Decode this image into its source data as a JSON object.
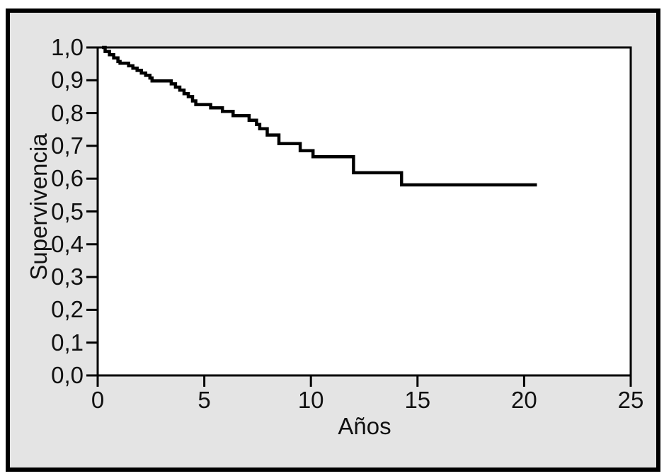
{
  "colors": {
    "panel_background": "#e4e4e4",
    "plot_background": "#ffffff",
    "frame": "#000000",
    "line": "#000000",
    "text": "#111111"
  },
  "chart_data": {
    "type": "line",
    "subtype": "kaplan-meier-step-survival",
    "title": "",
    "xlabel": "Años",
    "ylabel": "Supervivencia",
    "xlim": [
      0,
      25
    ],
    "ylim": [
      0.0,
      1.0
    ],
    "grid": false,
    "legend": false,
    "x_ticks": [
      {
        "value": 0,
        "label": "0"
      },
      {
        "value": 5,
        "label": "5"
      },
      {
        "value": 10,
        "label": "10"
      },
      {
        "value": 15,
        "label": "15"
      },
      {
        "value": 20,
        "label": "20"
      },
      {
        "value": 25,
        "label": "25"
      }
    ],
    "y_ticks": [
      {
        "value": 1.0,
        "label": "1,0"
      },
      {
        "value": 0.9,
        "label": "0,9"
      },
      {
        "value": 0.8,
        "label": "0,8"
      },
      {
        "value": 0.7,
        "label": "0,7"
      },
      {
        "value": 0.6,
        "label": "0,6"
      },
      {
        "value": 0.5,
        "label": "0,5"
      },
      {
        "value": 0.4,
        "label": "0,4"
      },
      {
        "value": 0.3,
        "label": "0,3"
      },
      {
        "value": 0.2,
        "label": "0,2"
      },
      {
        "value": 0.1,
        "label": "0,1"
      },
      {
        "value": 0.0,
        "label": "0,0"
      }
    ],
    "series": [
      {
        "steps": [
          [
            0.2,
            1.0
          ],
          [
            0.35,
            0.988
          ],
          [
            0.55,
            0.978
          ],
          [
            0.75,
            0.968
          ],
          [
            0.95,
            0.957
          ],
          [
            1.05,
            0.952
          ],
          [
            1.45,
            0.944
          ],
          [
            1.65,
            0.937
          ],
          [
            1.85,
            0.93
          ],
          [
            2.05,
            0.922
          ],
          [
            2.25,
            0.915
          ],
          [
            2.45,
            0.907
          ],
          [
            2.55,
            0.898
          ],
          [
            3.45,
            0.889
          ],
          [
            3.65,
            0.879
          ],
          [
            3.85,
            0.87
          ],
          [
            4.05,
            0.859
          ],
          [
            4.25,
            0.85
          ],
          [
            4.45,
            0.837
          ],
          [
            4.6,
            0.826
          ],
          [
            5.3,
            0.816
          ],
          [
            5.85,
            0.805
          ],
          [
            6.35,
            0.792
          ],
          [
            7.1,
            0.778
          ],
          [
            7.45,
            0.765
          ],
          [
            7.6,
            0.752
          ],
          [
            7.95,
            0.733
          ],
          [
            8.5,
            0.707
          ],
          [
            9.5,
            0.685
          ],
          [
            10.1,
            0.667
          ],
          [
            12.0,
            0.618
          ],
          [
            14.25,
            0.581
          ]
        ],
        "end_x": 20.6
      }
    ]
  }
}
